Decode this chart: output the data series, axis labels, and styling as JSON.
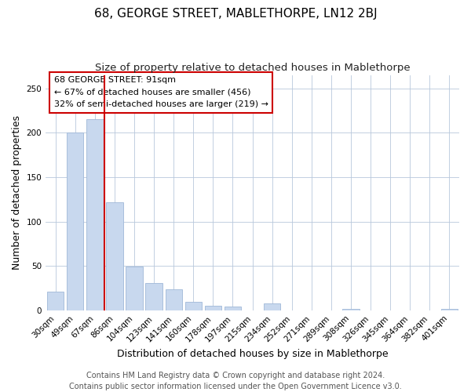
{
  "title": "68, GEORGE STREET, MABLETHORPE, LN12 2BJ",
  "subtitle": "Size of property relative to detached houses in Mablethorpe",
  "xlabel": "Distribution of detached houses by size in Mablethorpe",
  "ylabel": "Number of detached properties",
  "categories": [
    "30sqm",
    "49sqm",
    "67sqm",
    "86sqm",
    "104sqm",
    "123sqm",
    "141sqm",
    "160sqm",
    "178sqm",
    "197sqm",
    "215sqm",
    "234sqm",
    "252sqm",
    "271sqm",
    "289sqm",
    "308sqm",
    "326sqm",
    "345sqm",
    "364sqm",
    "382sqm",
    "401sqm"
  ],
  "values": [
    21,
    200,
    215,
    122,
    49,
    31,
    24,
    10,
    5,
    4,
    0,
    8,
    0,
    0,
    0,
    2,
    0,
    0,
    0,
    0,
    2
  ],
  "bar_color_left": "#c8d8ee",
  "bar_color_right": "#c8d8ee",
  "bar_edge_color": "#a0b8d8",
  "vline_color": "#cc0000",
  "annotation_title": "68 GEORGE STREET: 91sqm",
  "annotation_line1": "← 67% of detached houses are smaller (456)",
  "annotation_line2": "32% of semi-detached houses are larger (219) →",
  "annotation_box_color": "#ffffff",
  "annotation_box_edge": "#cc0000",
  "footer1": "Contains HM Land Registry data © Crown copyright and database right 2024.",
  "footer2": "Contains public sector information licensed under the Open Government Licence v3.0.",
  "ylim": [
    0,
    265
  ],
  "title_fontsize": 11,
  "subtitle_fontsize": 9.5,
  "xlabel_fontsize": 9,
  "ylabel_fontsize": 9,
  "tick_fontsize": 7.5,
  "footer_fontsize": 7,
  "ann_fontsize": 8
}
